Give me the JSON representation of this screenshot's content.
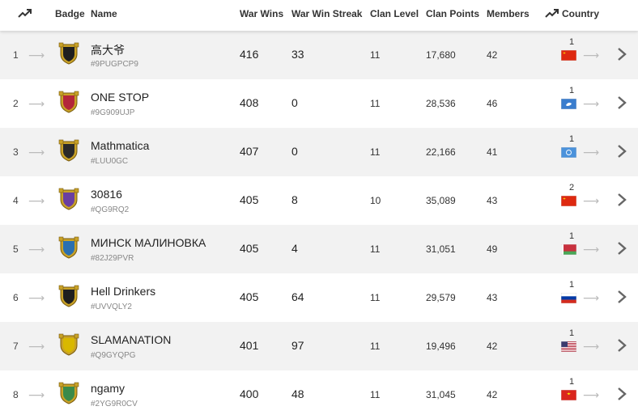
{
  "header": {
    "badge": "Badge",
    "name": "Name",
    "war_wins": "War Wins",
    "war_win_streak": "War Win Streak",
    "clan_level": "Clan Level",
    "clan_points": "Clan Points",
    "members": "Members",
    "country": "Country",
    "trend_icon": "trending-up-icon"
  },
  "rows": [
    {
      "rank": "1",
      "name": "高大爷",
      "tag": "#9PUGPCP9",
      "war_wins": "416",
      "streak": "33",
      "level": "11",
      "points": "17,680",
      "members": "42",
      "country_rank": "1",
      "flag": "china",
      "badge_color": "#1f1f1f"
    },
    {
      "rank": "2",
      "name": "ONE STOP",
      "tag": "#9G909UJP",
      "war_wins": "408",
      "streak": "0",
      "level": "11",
      "points": "28,536",
      "members": "46",
      "country_rank": "1",
      "flag": "antarctica",
      "badge_color": "#b3263a"
    },
    {
      "rank": "3",
      "name": "Mathmatica",
      "tag": "#LUU0GC",
      "war_wins": "407",
      "streak": "0",
      "level": "11",
      "points": "22,166",
      "members": "41",
      "country_rank": "1",
      "flag": "united-nations",
      "badge_color": "#2a2a2a"
    },
    {
      "rank": "4",
      "name": "30816",
      "tag": "#QG9RQ2",
      "war_wins": "405",
      "streak": "8",
      "level": "10",
      "points": "35,089",
      "members": "43",
      "country_rank": "2",
      "flag": "china",
      "badge_color": "#6a3fa0"
    },
    {
      "rank": "5",
      "name": "МИНСК МАЛИНОВКА",
      "tag": "#82J29PVR",
      "war_wins": "405",
      "streak": "4",
      "level": "11",
      "points": "31,051",
      "members": "49",
      "country_rank": "1",
      "flag": "belarus",
      "badge_color": "#2a6fb0"
    },
    {
      "rank": "6",
      "name": "Hell Drinkers",
      "tag": "#UVVQLY2",
      "war_wins": "405",
      "streak": "64",
      "level": "11",
      "points": "29,579",
      "members": "43",
      "country_rank": "1",
      "flag": "russia",
      "badge_color": "#1f1f1f"
    },
    {
      "rank": "7",
      "name": "SLAMANATION",
      "tag": "#Q9GYQPG",
      "war_wins": "401",
      "streak": "97",
      "level": "11",
      "points": "19,496",
      "members": "42",
      "country_rank": "1",
      "flag": "usa",
      "badge_color": "#d9b800"
    },
    {
      "rank": "8",
      "name": "ngamy",
      "tag": "#2YG9R0CV",
      "war_wins": "400",
      "streak": "48",
      "level": "11",
      "points": "31,045",
      "members": "42",
      "country_rank": "1",
      "flag": "vietnam",
      "badge_color": "#3a8a4a"
    }
  ]
}
